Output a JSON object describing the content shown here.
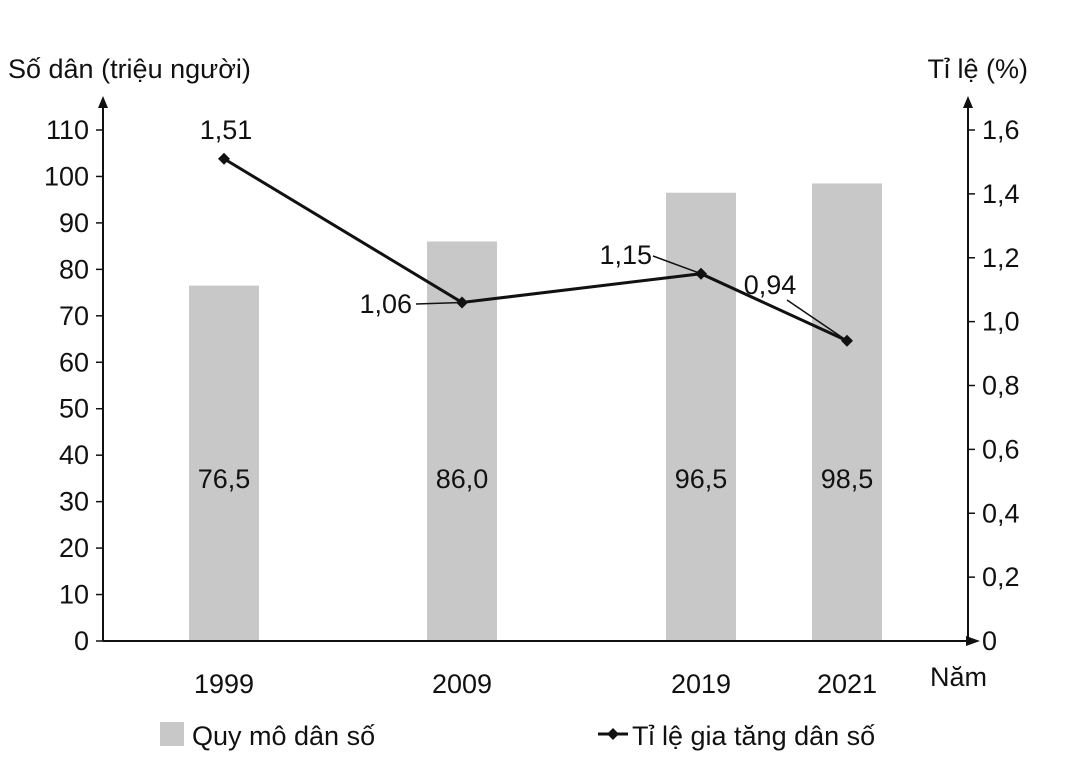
{
  "chart_data": {
    "type": "bar+line",
    "categories": [
      "1999",
      "2009",
      "2019",
      "2021"
    ],
    "series": [
      {
        "name": "Quy mô dân số",
        "type": "bar",
        "axis": "left",
        "values": [
          76.5,
          86.0,
          96.5,
          98.5
        ],
        "labels": [
          "76,5",
          "86,0",
          "96,5",
          "98,5"
        ],
        "color": "#c8c8c8"
      },
      {
        "name": "Tỉ lệ gia tăng dân số",
        "type": "line",
        "axis": "right",
        "values": [
          1.51,
          1.06,
          1.15,
          0.94
        ],
        "labels": [
          "1,51",
          "1,06",
          "1,15",
          "0,94"
        ],
        "color": "#111111"
      }
    ],
    "ylabel": "Số dân (triệu người)",
    "y2label": "Tỉ lệ (%)",
    "xlabel": "Năm",
    "ylim": [
      0,
      110
    ],
    "y2lim": [
      0,
      1.6
    ],
    "yticks": [
      "0",
      "10",
      "20",
      "30",
      "40",
      "50",
      "60",
      "70",
      "80",
      "90",
      "100",
      "110"
    ],
    "y2ticks": [
      "0",
      "0,2",
      "0,4",
      "0,6",
      "0,8",
      "1,0",
      "1,2",
      "1,4",
      "1,6"
    ],
    "grid": false,
    "legend_position": "bottom"
  }
}
